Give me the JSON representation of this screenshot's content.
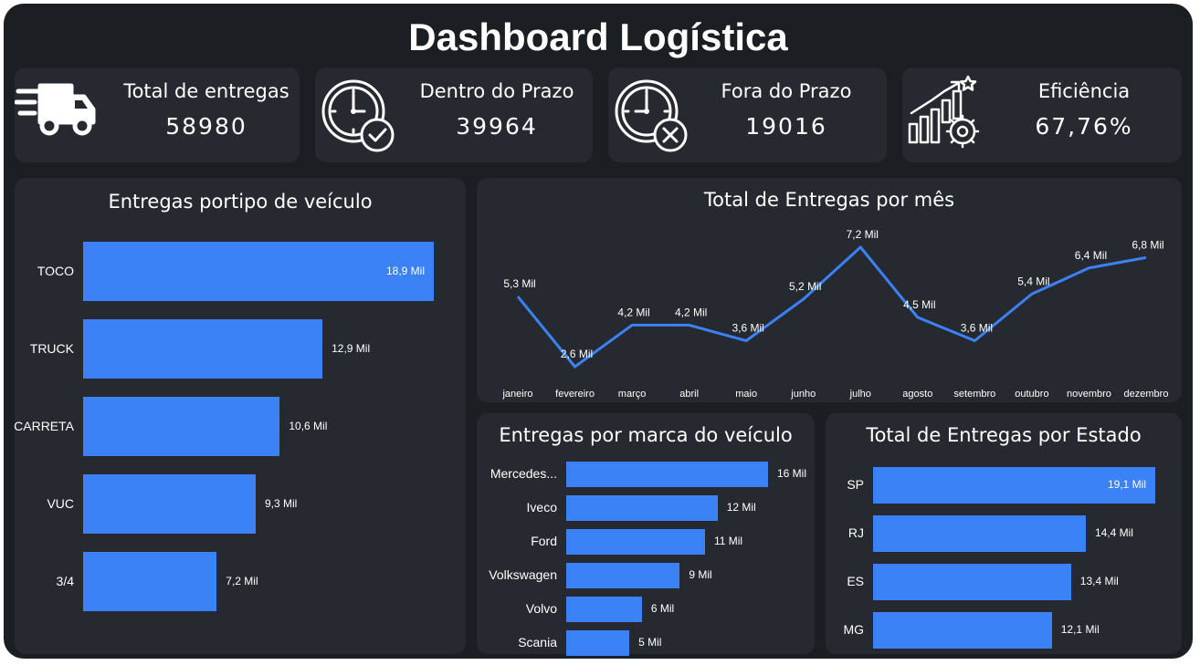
{
  "title": "Dashboard Logística",
  "colors": {
    "background": "#1b1e22",
    "card": "#262a30",
    "accent": "#3b82f6",
    "text": "#ffffff"
  },
  "kpis": [
    {
      "label": "Total de entregas",
      "value": "58980",
      "icon": "delivery-truck-icon"
    },
    {
      "label": "Dentro do Prazo",
      "value": "39964",
      "icon": "clock-check-icon"
    },
    {
      "label": "Fora do Prazo",
      "value": "19016",
      "icon": "clock-cross-icon"
    },
    {
      "label": "Eficiência",
      "value": "67,76%",
      "icon": "growth-chart-gear-icon"
    }
  ],
  "chart_data": [
    {
      "type": "bar",
      "orientation": "horizontal",
      "title": "Entregas portipo de veículo",
      "categories": [
        "TOCO",
        "TRUCK",
        "CARRETA",
        "VUC",
        "3/4"
      ],
      "values": [
        18.9,
        12.9,
        10.6,
        9.3,
        7.2
      ],
      "value_labels": [
        "18,9 Mil",
        "12,9 Mil",
        "10,6 Mil",
        "9,3 Mil",
        "7,2 Mil"
      ],
      "unit": "Mil"
    },
    {
      "type": "line",
      "title": "Total de Entregas por mês",
      "categories": [
        "janeiro",
        "fevereiro",
        "março",
        "abril",
        "maio",
        "junho",
        "julho",
        "agosto",
        "setembro",
        "outubro",
        "novembro",
        "dezembro"
      ],
      "values": [
        5.3,
        2.6,
        4.2,
        4.2,
        3.6,
        5.2,
        7.2,
        4.5,
        3.6,
        5.4,
        6.4,
        6.8
      ],
      "value_labels": [
        "5,3 Mil",
        "2,6 Mil",
        "4,2 Mil",
        "4,2 Mil",
        "3,6 Mil",
        "5,2 Mil",
        "7,2 Mil",
        "4,5 Mil",
        "3,6 Mil",
        "5,4 Mil",
        "6,4 Mil",
        "6,8 Mil"
      ],
      "unit": "Mil"
    },
    {
      "type": "bar",
      "orientation": "horizontal",
      "title": "Entregas por marca do veículo",
      "categories": [
        "Mercedes...",
        "Iveco",
        "Ford",
        "Volkswagen",
        "Volvo",
        "Scania"
      ],
      "values": [
        16,
        12,
        11,
        9,
        6,
        5
      ],
      "value_labels": [
        "16 Mil",
        "12 Mil",
        "11 Mil",
        "9 Mil",
        "6 Mil",
        "5 Mil"
      ],
      "unit": "Mil"
    },
    {
      "type": "bar",
      "orientation": "horizontal",
      "title": "Total de Entregas por Estado",
      "categories": [
        "SP",
        "RJ",
        "ES",
        "MG"
      ],
      "values": [
        19.1,
        14.4,
        13.4,
        12.1
      ],
      "value_labels": [
        "19,1 Mil",
        "14,4 Mil",
        "13,4 Mil",
        "12,1 Mil"
      ],
      "unit": "Mil"
    }
  ]
}
